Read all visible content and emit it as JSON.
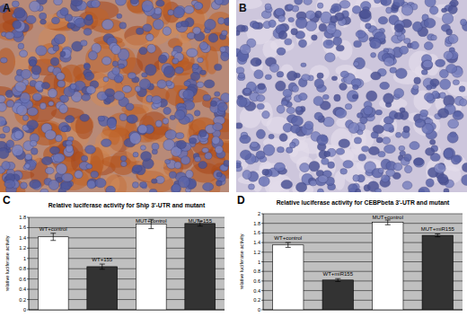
{
  "panel_labels": [
    "A",
    "B",
    "C",
    "D"
  ],
  "chart_data": [
    {
      "type": "bar",
      "title": "Relative luciferase activity for Ship 3'-UTR and mutant",
      "y_label": "relative luciferase activity",
      "categories": [
        "WT+control",
        "WT+155",
        "MUT+control",
        "MUT+155"
      ],
      "values": [
        1.42,
        0.84,
        1.67,
        1.68
      ],
      "errors": [
        0.07,
        0.05,
        0.09,
        0.05
      ],
      "colors": [
        "#ffffff",
        "#333333",
        "#ffffff",
        "#333333"
      ],
      "ylim": [
        0,
        1.8
      ],
      "yticks": [
        0,
        0.2,
        0.4,
        0.6,
        0.8,
        1,
        1.2,
        1.4,
        1.6,
        1.8
      ],
      "grid": true,
      "tick_labels": "y"
    },
    {
      "type": "bar",
      "title": "Relative luciferase activity for CEBPbeta 3'-UTR and mutant",
      "y_label": "relative luciferase activity",
      "categories": [
        "WT+control",
        "WT+miR155",
        "MUT+control",
        "MUT+miR155"
      ],
      "values": [
        1.35,
        0.62,
        1.82,
        1.55
      ],
      "errors": [
        0.05,
        0.03,
        0.05,
        0.03
      ],
      "colors": [
        "#ffffff",
        "#333333",
        "#ffffff",
        "#333333"
      ],
      "ylim": [
        0,
        2
      ],
      "yticks": [
        0,
        0.2,
        0.4,
        0.6,
        0.8,
        1,
        1.2,
        1.4,
        1.6,
        1.8,
        2
      ],
      "grid": true,
      "tick_labels": "y"
    }
  ]
}
